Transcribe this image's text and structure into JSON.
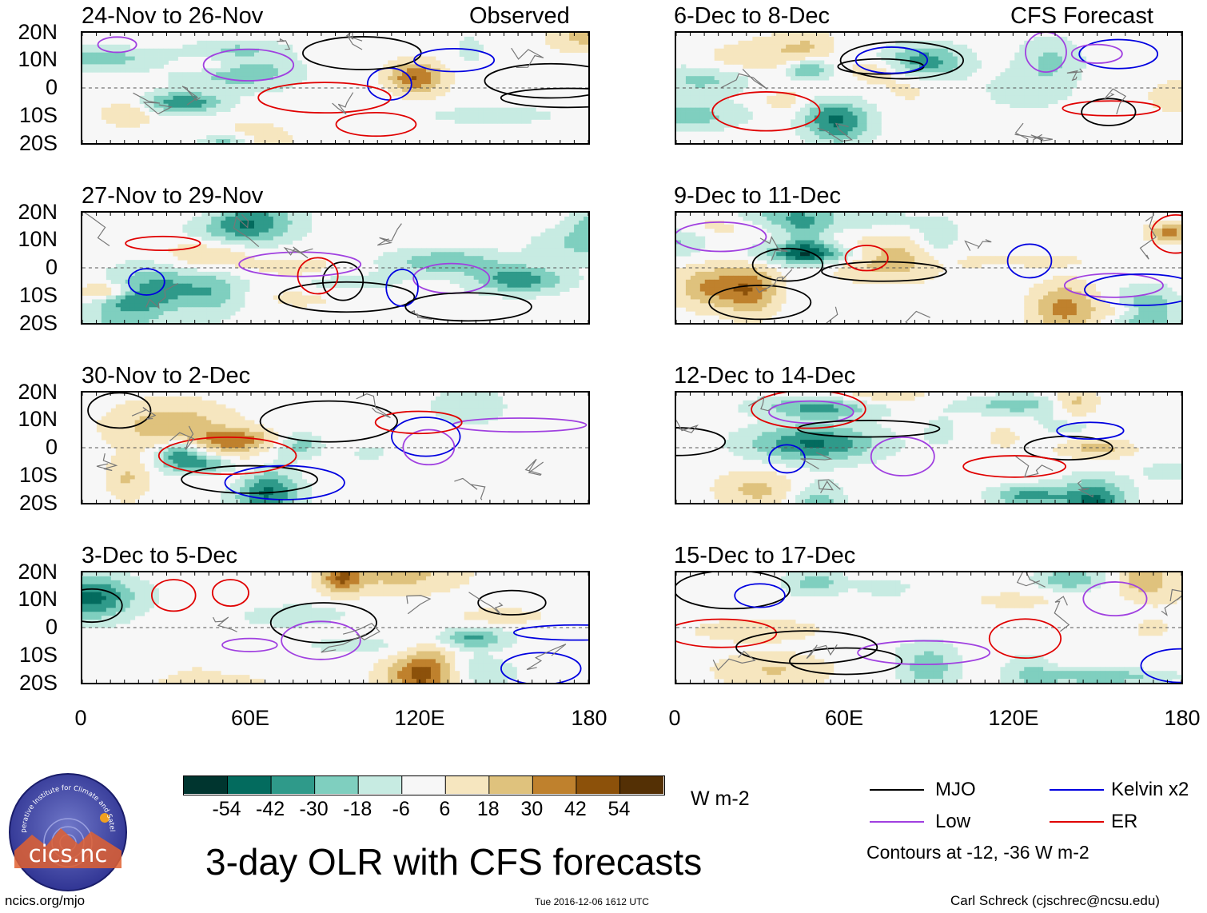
{
  "chart_data": {
    "type": "heatmap",
    "title": "3-day OLR with CFS forecasts",
    "observed_label": "Observed",
    "forecast_label": "CFS Forecast",
    "y_ticks": [
      "20N",
      "10N",
      "0",
      "10S",
      "20S"
    ],
    "x_ticks": [
      "0",
      "60E",
      "120E",
      "180"
    ],
    "xlim": [
      0,
      180
    ],
    "ylim": [
      -20,
      20
    ],
    "observed_panels": [
      {
        "title": "24-Nov to 26-Nov"
      },
      {
        "title": "27-Nov to 29-Nov"
      },
      {
        "title": "30-Nov to 2-Dec"
      },
      {
        "title": "3-Dec to 5-Dec"
      }
    ],
    "forecast_panels": [
      {
        "title": "6-Dec to 8-Dec"
      },
      {
        "title": "9-Dec to 11-Dec"
      },
      {
        "title": "12-Dec to 14-Dec"
      },
      {
        "title": "15-Dec to 17-Dec"
      }
    ],
    "colorbar": {
      "unit": "W m-2",
      "tick_labels": [
        "-54",
        "-42",
        "-30",
        "-18",
        "-6",
        "6",
        "18",
        "30",
        "42",
        "54"
      ],
      "colors": [
        "#00352f",
        "#036b5e",
        "#2f9a8a",
        "#7fcfbf",
        "#c7ebe2",
        "#f7f7f7",
        "#f6e6bf",
        "#dfc27d",
        "#bf812d",
        "#8c510a",
        "#543005"
      ]
    },
    "legend": {
      "entries": [
        {
          "label": "MJO",
          "color": "#000000"
        },
        {
          "label": "Kelvin x2",
          "color": "#0000e0"
        },
        {
          "label": "Low",
          "color": "#a040e0"
        },
        {
          "label": "ER",
          "color": "#e00000"
        }
      ],
      "note": "Contours at -12, -36 W m-2"
    }
  },
  "footer": {
    "logo_text": "cics.nc",
    "logo_arc_text": "Cooperative Institute for Climate and Satellites",
    "left": "ncics.org/mjo",
    "center": "Tue 2016-12-06 1612 UTC",
    "right": "Carl Schreck (cjschrec@ncsu.edu)"
  }
}
